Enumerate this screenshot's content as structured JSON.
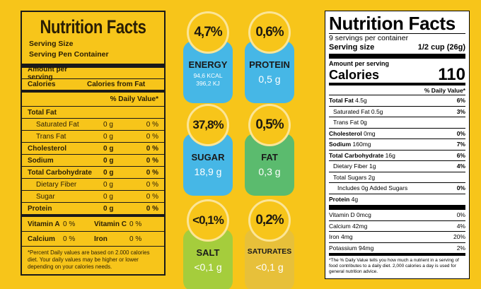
{
  "left_label": {
    "title": "Nutrition Facts",
    "serving_size": "Serving Size",
    "serving_per_container": "Serving Pen Container",
    "amount_per_serving": "Amount per serving",
    "calories": "Calories",
    "calories_from_fat": "Calories from Fat",
    "daily_value_header": "% Daily Value*",
    "rows": [
      {
        "name": "Total Fat",
        "grams": "",
        "pct": "",
        "bold": true
      },
      {
        "name": "Saturated Fat",
        "grams": "0 g",
        "pct": "0 %",
        "bold": false
      },
      {
        "name": "Trans Fat",
        "grams": "0 g",
        "pct": "0 %",
        "bold": false
      },
      {
        "name": "Cholesterol",
        "grams": "0 g",
        "pct": "0 %",
        "bold": true
      },
      {
        "name": "Sodium",
        "grams": "0 g",
        "pct": "0 %",
        "bold": true
      },
      {
        "name": "Total Carbohydrate",
        "grams": "0 g",
        "pct": "0 %",
        "bold": true
      },
      {
        "name": "Dietary Fiber",
        "grams": "0 g",
        "pct": "0 %",
        "bold": false
      },
      {
        "name": "Sugar",
        "grams": "0 g",
        "pct": "0 %",
        "bold": false
      },
      {
        "name": "Protein",
        "grams": "0 g",
        "pct": "0 %",
        "bold": true
      }
    ],
    "vitamins": [
      {
        "a_label": "Vitamin A",
        "a_pct": "0 %",
        "b_label": "Vitamin C",
        "b_pct": "0 %"
      },
      {
        "a_label": "Calcium",
        "a_pct": "0 %",
        "b_label": "Iron",
        "b_pct": "0 %"
      }
    ],
    "footnote": "*Percent Daily values are based on 2.000 calories diet. Your daily values may be higher or lower depending on your calories needs."
  },
  "badges": [
    {
      "percent": "4,7%",
      "label": "ENERGY",
      "value": "",
      "sub1": "94,6 KCAL",
      "sub2": "396,2 KJ",
      "color": "#46b7e6"
    },
    {
      "percent": "0,6%",
      "label": "PROTEIN",
      "value": "0,5 g",
      "sub1": "",
      "sub2": "",
      "color": "#46b7e6"
    },
    {
      "percent": "37,8%",
      "label": "SUGAR",
      "value": "18,9 g",
      "sub1": "",
      "sub2": "",
      "color": "#46b7e6"
    },
    {
      "percent": "0,5%",
      "label": "FAT",
      "value": "0,3 g",
      "sub1": "",
      "sub2": "",
      "color": "#5bbb6e"
    },
    {
      "percent": "<0,1%",
      "label": "SALT",
      "value": "<0,1 g",
      "sub1": "",
      "sub2": "",
      "color": "#a5cd3c"
    },
    {
      "percent": "0,2%",
      "label": "SATURATES",
      "value": "<0,1 g",
      "sub1": "",
      "sub2": "",
      "color": "#e7c03a"
    }
  ],
  "right_label": {
    "title": "Nutrition Facts",
    "servings": "9 servings per container",
    "serving_size_label": "Serving size",
    "serving_size_value": "1/2 cup (26g)",
    "amount_per_serving": "Amount per serving",
    "calories_label": "Calories",
    "calories_value": "110",
    "daily_value_header": "% Daily Value*",
    "nutrients": [
      {
        "bold": "Total Fat",
        "rest": " 4.5g",
        "pct": "6%",
        "indent": 0
      },
      {
        "bold": "",
        "rest": "Saturated Fat 0.5g",
        "pct": "3%",
        "indent": 1
      },
      {
        "bold": "",
        "rest": "Trans Fat 0g",
        "pct": "",
        "indent": 1
      },
      {
        "bold": "Cholesterol",
        "rest": " 0mg",
        "pct": "0%",
        "indent": 0
      },
      {
        "bold": "Sodium",
        "rest": " 160mg",
        "pct": "7%",
        "indent": 0
      },
      {
        "bold": "Total Carbohydrate",
        "rest": " 16g",
        "pct": "6%",
        "indent": 0
      },
      {
        "bold": "",
        "rest": "Dietary Fiber 1g",
        "pct": "4%",
        "indent": 1
      },
      {
        "bold": "",
        "rest": "Total Sugars 2g",
        "pct": "",
        "indent": 1
      },
      {
        "bold": "",
        "rest": "Includes 0g Added Sugars",
        "pct": "0%",
        "indent": 2
      },
      {
        "bold": "Protein",
        "rest": " 4g",
        "pct": "",
        "indent": 0
      }
    ],
    "vitamins": [
      {
        "name": "Vitamin D 0mcg",
        "pct": "0%"
      },
      {
        "name": "Calcium 42mg",
        "pct": "4%"
      },
      {
        "name": "Iron 4mg",
        "pct": "20%"
      },
      {
        "name": "Potassium 94mg",
        "pct": "2%"
      }
    ],
    "footnote": "*The % Daily Value tells you how much a nutrient in a serving of food contributes to a daily diet. 2,000 calories a day is used for general nutrition advice."
  }
}
